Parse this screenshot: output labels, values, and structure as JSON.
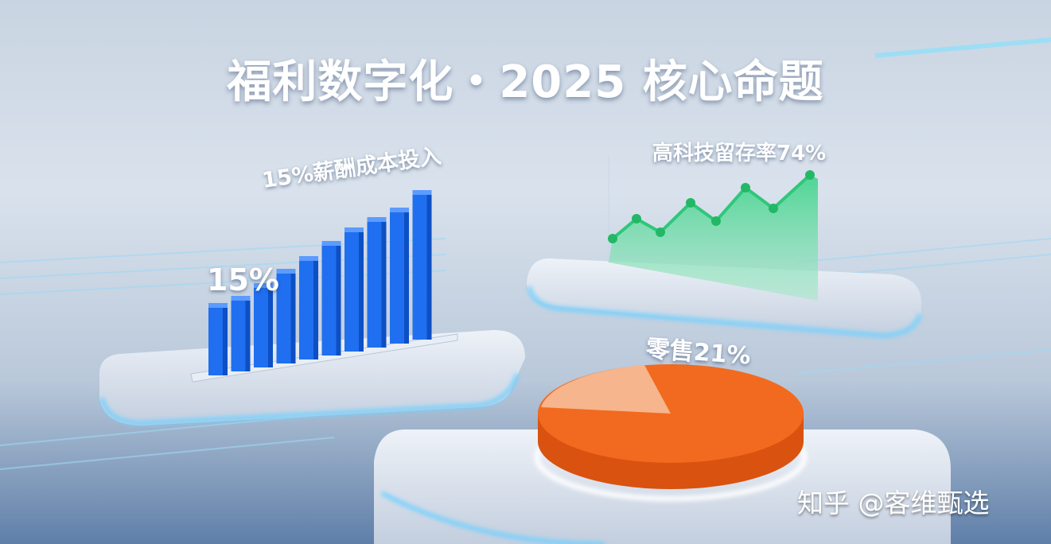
{
  "title": "福利数字化・2025 核心命题",
  "bar_panel": {
    "label_top": "15%薪酬成本投入",
    "label_left": "15%",
    "color": "#1f6ff0"
  },
  "line_panel": {
    "label": "高科技留存率74%",
    "color": "#2fc77a"
  },
  "pie_panel": {
    "label": "零售21%",
    "color": "#f26a1f",
    "slice_color": "#f6b58c"
  },
  "watermark": "知乎 @客维甄选"
}
